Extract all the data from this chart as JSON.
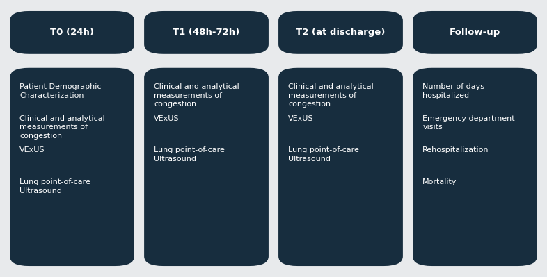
{
  "background_color": "#e8eaec",
  "box_color": "#172d3e",
  "text_color": "#ffffff",
  "columns": [
    {
      "header": "T0 (24h)",
      "items": [
        "Patient Demographic\nCharacterization",
        "Clinical and analytical\nmeasurements of\ncongestion",
        "VExUS",
        "Lung point-of-care\nUltrasound"
      ]
    },
    {
      "header": "T1 (48h-72h)",
      "items": [
        "Clinical and analytical\nmeasurements of\ncongestion",
        "VExUS",
        "Lung point-of-care\nUltrasound"
      ]
    },
    {
      "header": "T2 (at discharge)",
      "items": [
        "Clinical and analytical\nmeasurements of\ncongestion",
        "VExUS",
        "Lung point-of-care\nUltrasound"
      ]
    },
    {
      "header": "Follow-up",
      "items": [
        "Number of days\nhospitalized",
        "Emergency department\nvisits",
        "Rehospitalization",
        "Mortality"
      ]
    }
  ],
  "header_fontsize": 9.5,
  "body_fontsize": 8.0,
  "fig_width": 7.86,
  "fig_height": 3.99
}
